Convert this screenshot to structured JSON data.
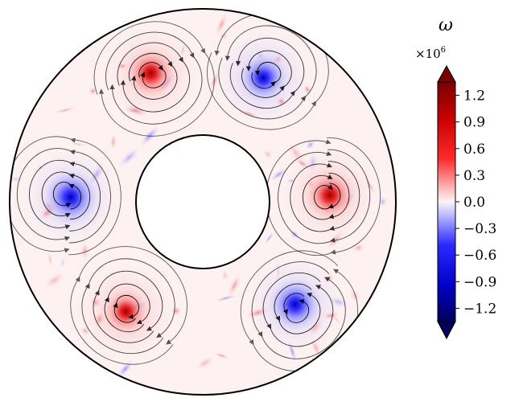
{
  "chart_data": {
    "type": "heatmap",
    "title": "",
    "colorbar": {
      "label": "ω",
      "multiplier_base": "×10",
      "multiplier_exponent": "6",
      "range": [
        -1.35,
        1.35
      ],
      "extend": "both",
      "colormap": "seismic",
      "levels": 27,
      "ticks": [
        1.2,
        0.9,
        0.6,
        0.3,
        0.0,
        -0.3,
        -0.6,
        -0.9,
        -1.2
      ],
      "tick_labels": [
        "1.2",
        "0.9",
        "0.6",
        "0.3",
        "0.0",
        "−0.3",
        "−0.6",
        "−0.9",
        "−1.2"
      ]
    },
    "domain": {
      "shape": "annulus",
      "inner_to_outer_radius_ratio": 0.35
    },
    "vortices": [
      {
        "name": "vortex-upper-left",
        "angle_deg": 112,
        "r": 0.73,
        "sign": "positive",
        "peak": 1.0
      },
      {
        "name": "vortex-top-right",
        "angle_deg": 64,
        "r": 0.72,
        "sign": "negative",
        "peak": -0.9
      },
      {
        "name": "vortex-right",
        "angle_deg": 3,
        "r": 0.61,
        "sign": "positive",
        "peak": 1.0
      },
      {
        "name": "vortex-lower-right",
        "angle_deg": -48,
        "r": 0.72,
        "sign": "negative",
        "peak": -1.1
      },
      {
        "name": "vortex-lower-left",
        "angle_deg": -125,
        "r": 0.68,
        "sign": "positive",
        "peak": 0.8
      },
      {
        "name": "vortex-left",
        "angle_deg": 178,
        "r": 0.66,
        "sign": "negative",
        "peak": -1.2
      }
    ],
    "grid": false,
    "legend": "right"
  }
}
